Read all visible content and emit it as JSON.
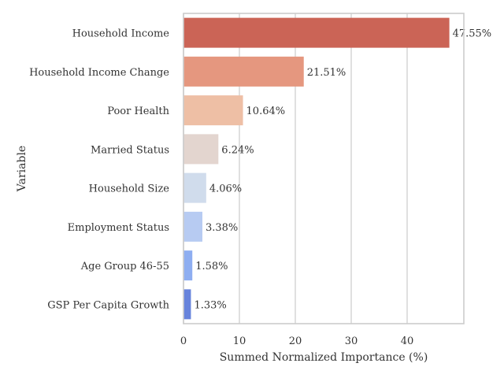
{
  "chart_data": {
    "type": "bar",
    "orientation": "horizontal",
    "categories": [
      "Household Income",
      "Household Income Change",
      "Poor Health",
      "Married Status",
      "Household Size",
      "Employment Status",
      "Age Group 46-55",
      "GSP Per Capita Growth"
    ],
    "values": [
      47.55,
      21.51,
      10.64,
      6.24,
      4.06,
      3.38,
      1.58,
      1.33
    ],
    "value_labels": [
      "47.55%",
      "21.51%",
      "10.64%",
      "6.24%",
      "4.06%",
      "3.38%",
      "1.58%",
      "1.33%"
    ],
    "colors": [
      "#cb6456",
      "#e5977f",
      "#eebfa5",
      "#e3d5cf",
      "#d0dcec",
      "#b7cbf2",
      "#8eaef1",
      "#6783dc"
    ],
    "xlabel": "Summed Normalized Importance (%)",
    "ylabel": "Variable",
    "xlim": [
      0,
      50
    ],
    "xticks": [
      0,
      10,
      20,
      30,
      40
    ],
    "grid": "vertical"
  }
}
